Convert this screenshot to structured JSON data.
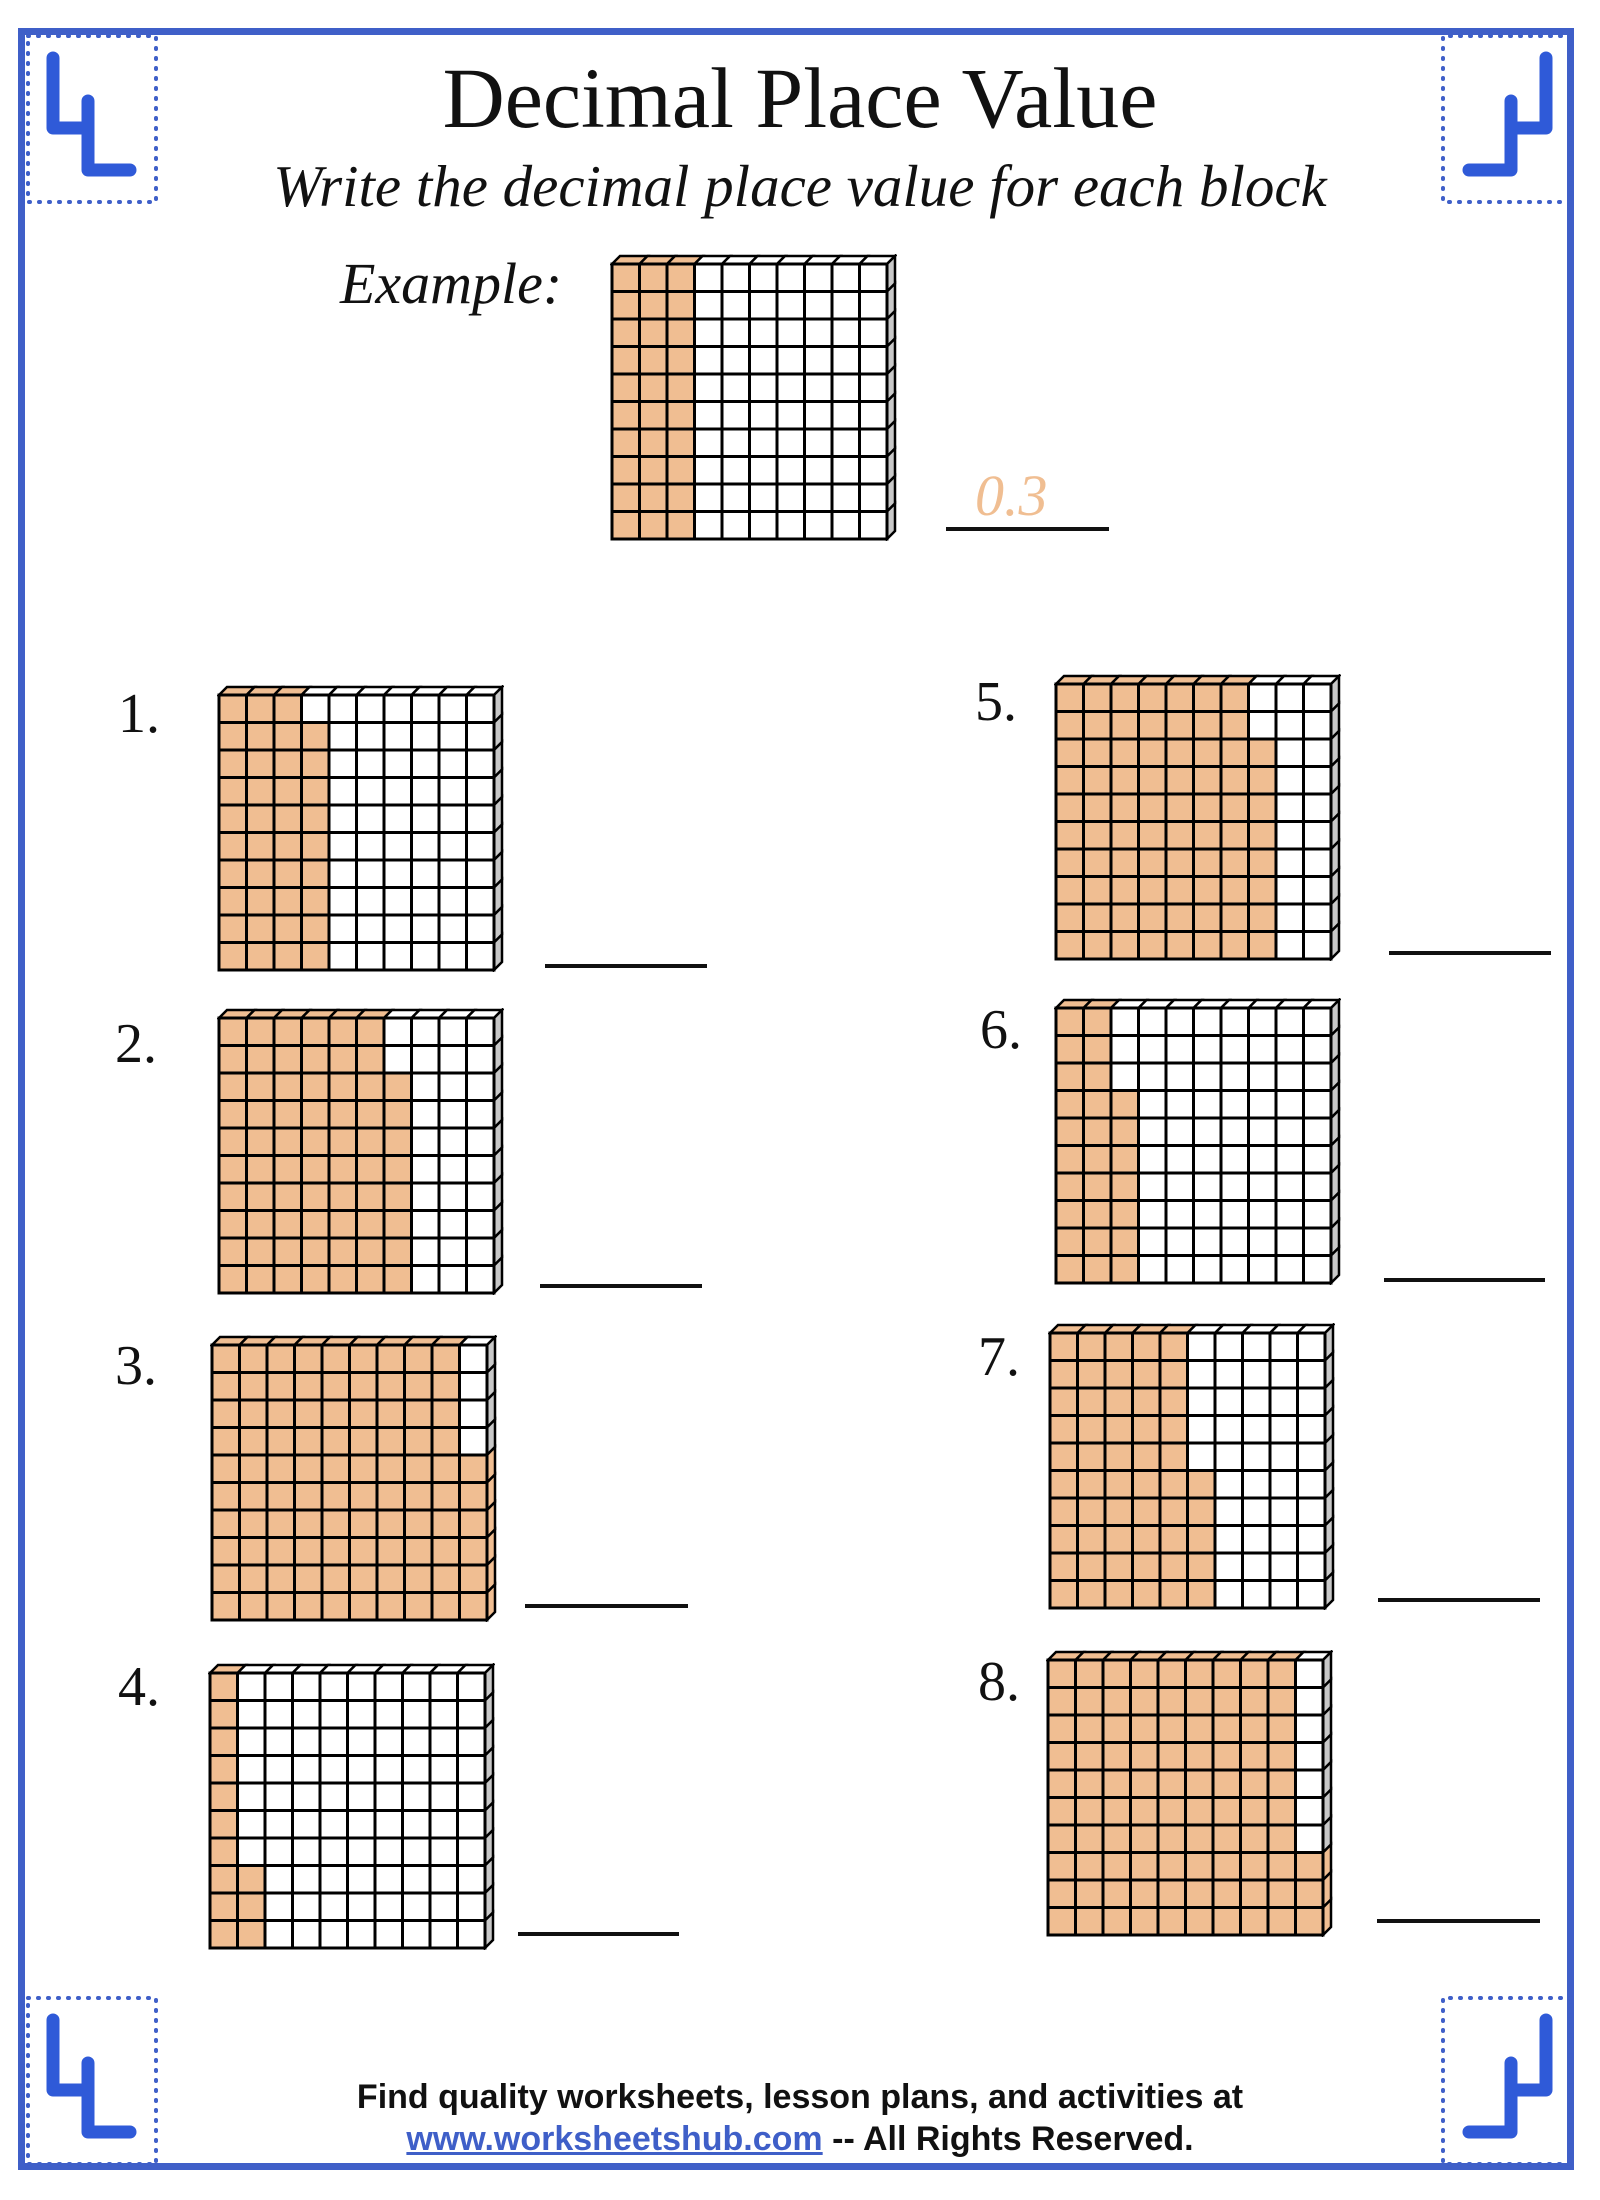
{
  "header": {
    "title": "Decimal Place Value",
    "subtitle": "Write the decimal place value for each block"
  },
  "example": {
    "label": "Example:",
    "filled_hundredths": 30,
    "answer": "0.3"
  },
  "problems": [
    {
      "number": "1.",
      "filled_hundredths": 39
    },
    {
      "number": "2.",
      "filled_hundredths": 68
    },
    {
      "number": "3.",
      "filled_hundredths": 96
    },
    {
      "number": "4.",
      "filled_hundredths": 13
    },
    {
      "number": "5.",
      "filled_hundredths": 78
    },
    {
      "number": "6.",
      "filled_hundredths": 27
    },
    {
      "number": "7.",
      "filled_hundredths": 55
    },
    {
      "number": "8.",
      "filled_hundredths": 93
    }
  ],
  "footer": {
    "line1": "Find quality worksheets, lesson plans, and activities at",
    "link": "www.worksheetshub.com",
    "rights": " -- All Rights Reserved."
  },
  "colors": {
    "filled": "#f0be92",
    "border": "#3f5fc8",
    "ornament": "#2f5ad8"
  },
  "icons": {
    "corner": "corner-ornament-icon"
  }
}
